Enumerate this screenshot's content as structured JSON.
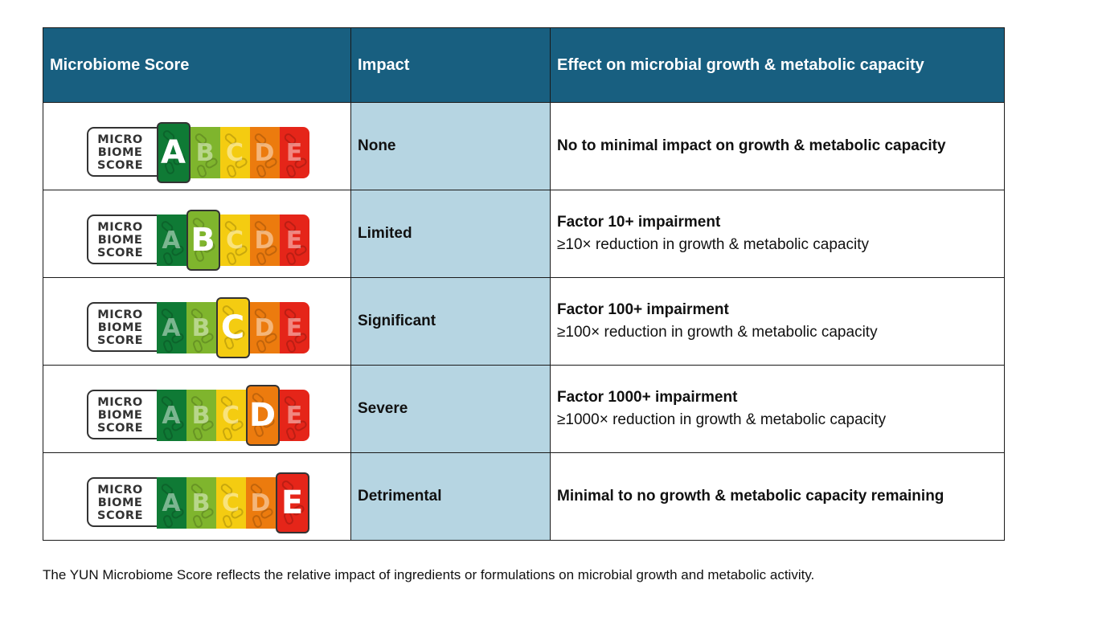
{
  "table": {
    "headers": {
      "score": "Microbiome Score",
      "impact": "Impact",
      "effect": "Effect on microbial growth & metabolic capacity"
    },
    "badge_label": [
      "MICRO",
      "BIOME",
      "SCORE"
    ],
    "grade_colors": {
      "A": "#0f7a35",
      "B": "#7fb52d",
      "C": "#f4cc11",
      "D": "#ec7b0e",
      "E": "#e52519"
    },
    "rows": [
      {
        "grade": "A",
        "impact": "None",
        "effect_main": "No to minimal impact on growth & metabolic capacity",
        "effect_sub": ""
      },
      {
        "grade": "B",
        "impact": "Limited",
        "effect_main": "Factor 10+ impairment",
        "effect_sub": "≥10× reduction in growth & metabolic capacity"
      },
      {
        "grade": "C",
        "impact": "Significant",
        "effect_main": "Factor 100+ impairment",
        "effect_sub": "≥100× reduction in growth & metabolic capacity"
      },
      {
        "grade": "D",
        "impact": "Severe",
        "effect_main": "Factor 1000+ impairment",
        "effect_sub": "≥1000× reduction in growth & metabolic capacity"
      },
      {
        "grade": "E",
        "impact": "Detrimental",
        "effect_main": "Minimal to no growth & metabolic capacity remaining",
        "effect_sub": ""
      }
    ]
  },
  "footnote": "The YUN Microbiome Score reflects the relative impact of ingredients or formulations on microbial growth and metabolic activity."
}
